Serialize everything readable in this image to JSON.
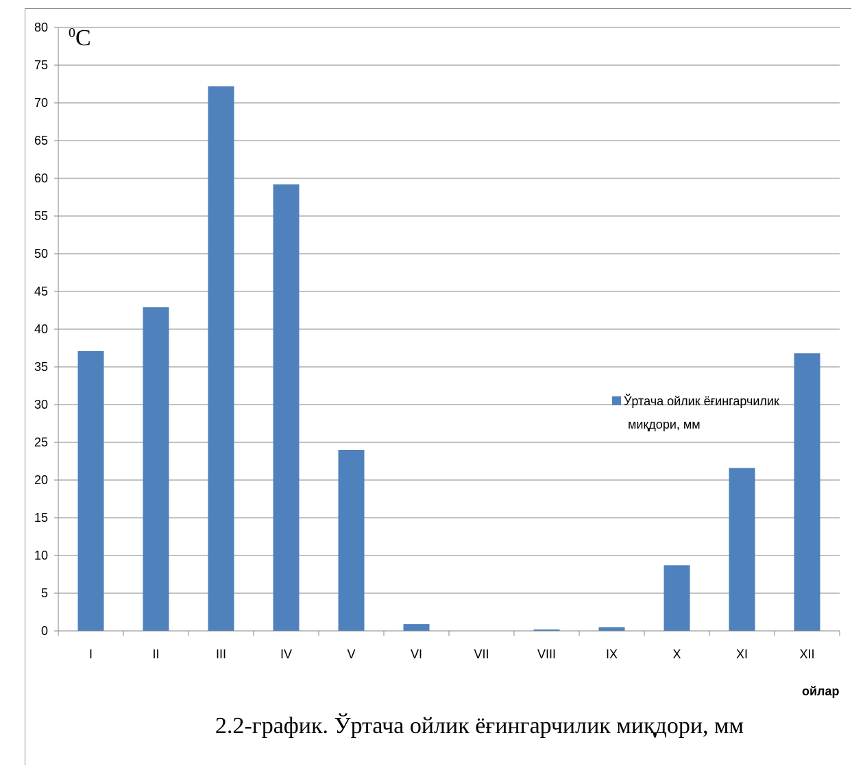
{
  "chart_data": {
    "type": "bar",
    "categories": [
      "I",
      "II",
      "III",
      "IV",
      "V",
      "VI",
      "VII",
      "VIII",
      "IX",
      "X",
      "XI",
      "XII"
    ],
    "series": [
      {
        "name": "Ўртача ойлик ёғингарчилик миқдори, мм",
        "values": [
          37.1,
          42.9,
          72.2,
          59.2,
          24.0,
          0.9,
          0.0,
          0.2,
          0.5,
          8.7,
          21.6,
          36.8
        ],
        "color": "#4f81bd"
      }
    ],
    "ylim": [
      0,
      80
    ],
    "yticks": [
      0,
      5,
      10,
      15,
      20,
      25,
      30,
      35,
      40,
      45,
      50,
      55,
      60,
      65,
      70,
      75,
      80
    ],
    "ylabel_base": "C",
    "ylabel_sup": "0",
    "xlabel": "ойлар",
    "legend_line1": "Ўртача ойлик ёғингарчилик",
    "legend_line2": "миқдори, мм",
    "grid": true,
    "legend_position": "right",
    "caption": "2.2-график. Ўртача ойлик ёғингарчилик миқдори, мм"
  }
}
